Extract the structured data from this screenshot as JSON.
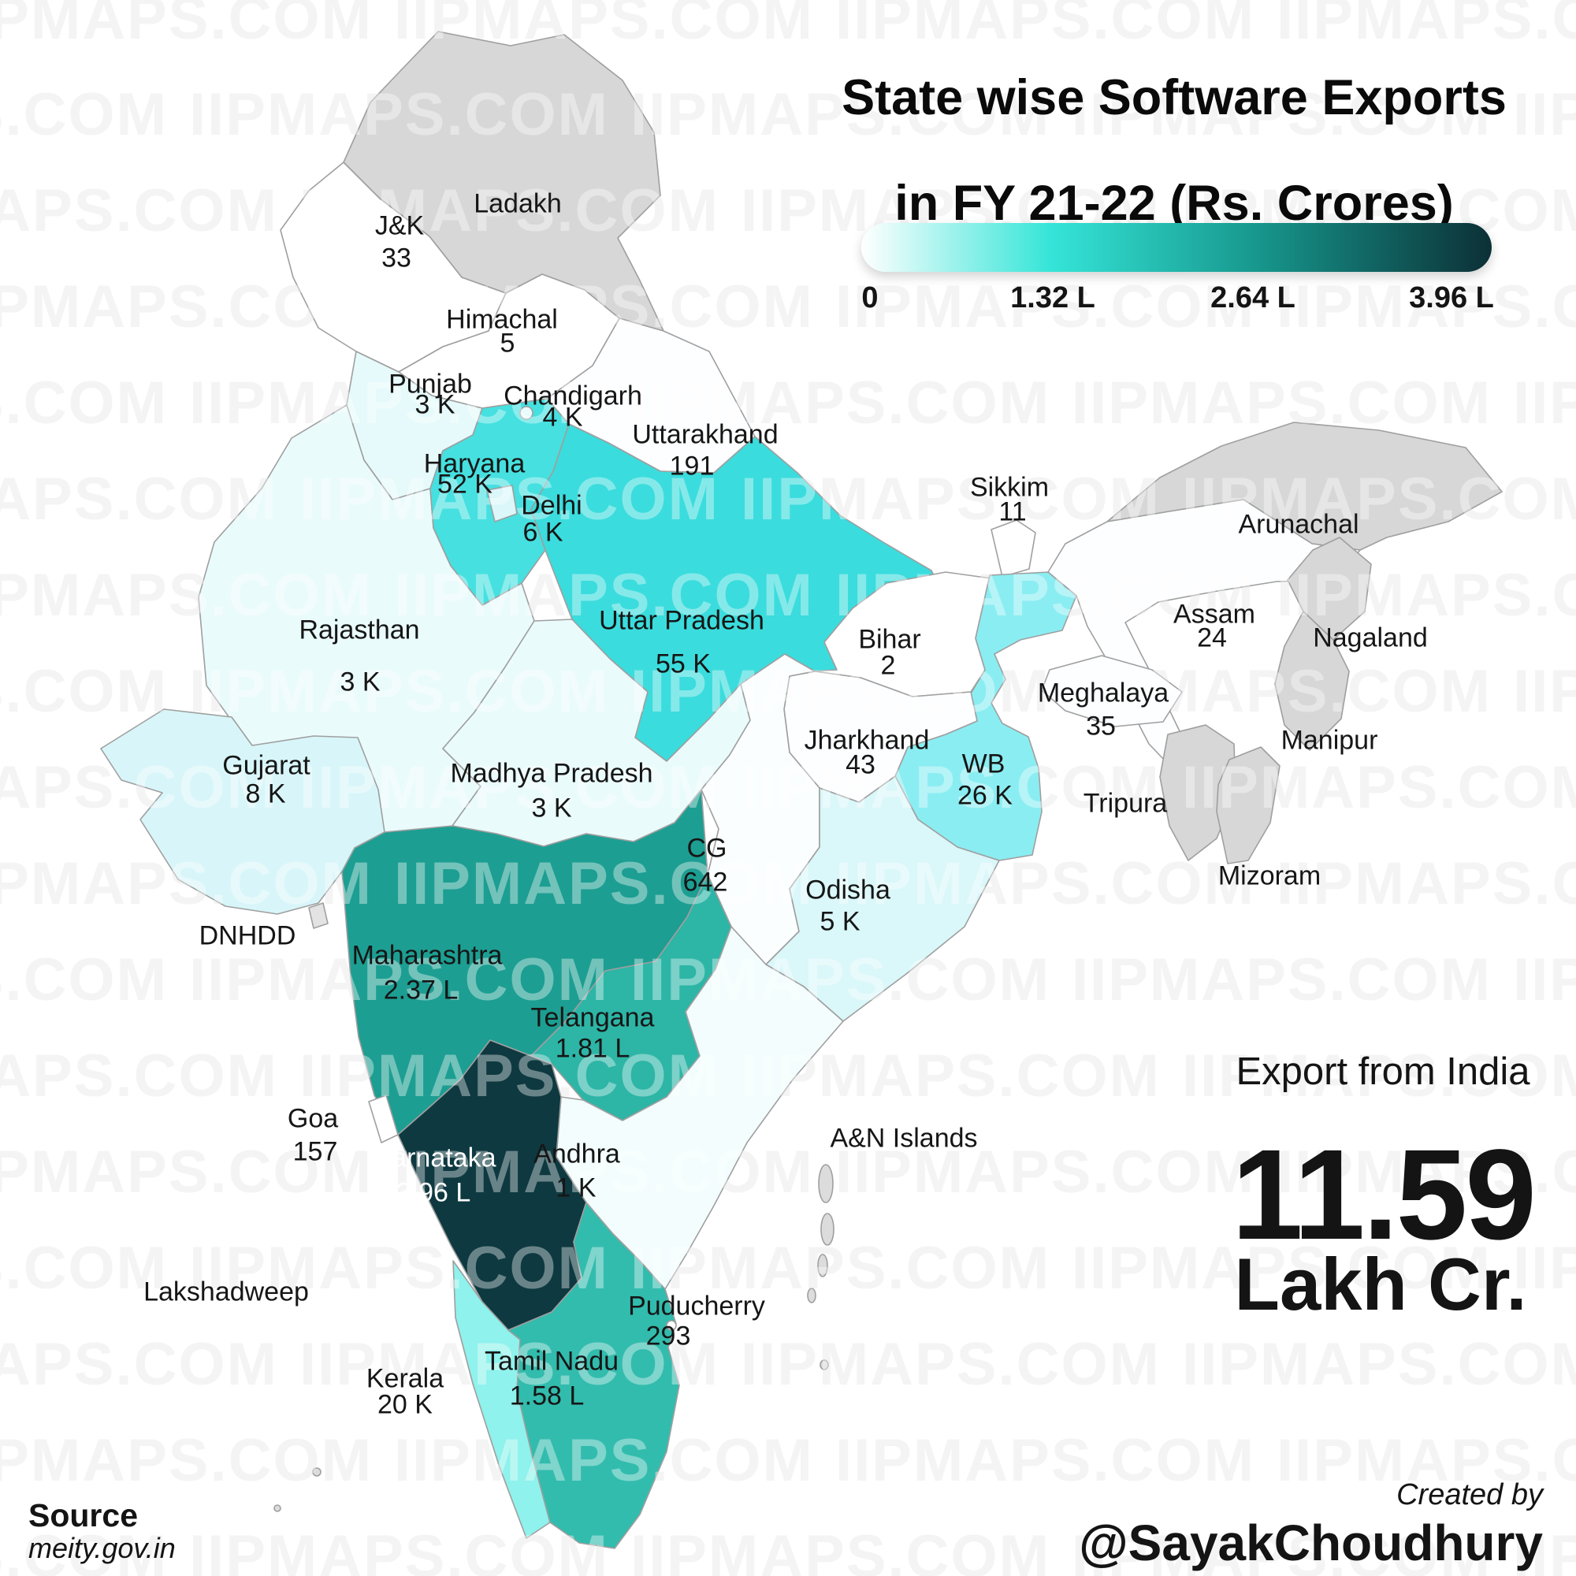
{
  "title": {
    "line1": "State wise Software Exports",
    "line2": "in FY 21-22 (Rs. Crores)"
  },
  "legend": {
    "ticks": [
      "0",
      "1.32 L",
      "2.64 L",
      "3.96 L"
    ],
    "gradient": [
      "#ffffff",
      "#35e5d8",
      "#16948a",
      "#0c3036"
    ]
  },
  "summary": {
    "heading": "Export from India",
    "value": "11.59",
    "unit": "Lakh Cr."
  },
  "source": {
    "label": "Source",
    "site": "meity.gov.in"
  },
  "credit": {
    "prefix": "Created by",
    "handle": "@SayakChoudhury"
  },
  "watermark": {
    "text": "IIPMAPS.COM"
  },
  "map": {
    "states": [
      {
        "key": "ladakh",
        "label": "Ladakh",
        "value": "",
        "fill": "#d7d7d7"
      },
      {
        "key": "jk",
        "label": "J&K",
        "value": "33",
        "fill": "#ffffff"
      },
      {
        "key": "himachal",
        "label": "Himachal",
        "value": "5",
        "fill": "#ffffff"
      },
      {
        "key": "punjab",
        "label": "Punjab",
        "value": "3 K",
        "fill": "#e6fafb"
      },
      {
        "key": "chandigarh",
        "label": "Chandigarh",
        "value": "4 K",
        "fill": "#e9fbfc"
      },
      {
        "key": "uttarakhand",
        "label": "Uttarakhand",
        "value": "191",
        "fill": "#fdfeff"
      },
      {
        "key": "haryana",
        "label": "Haryana",
        "value": "52 K",
        "fill": "#46e0e0"
      },
      {
        "key": "delhi",
        "label": "Delhi",
        "value": "6 K",
        "fill": "#dcf7fa"
      },
      {
        "key": "rajasthan",
        "label": "Rajasthan",
        "value": "3 K",
        "fill": "#eafbfc"
      },
      {
        "key": "up",
        "label": "Uttar Pradesh",
        "value": "55 K",
        "fill": "#3bdcdd"
      },
      {
        "key": "sikkim",
        "label": "Sikkim",
        "value": "11",
        "fill": "#ffffff"
      },
      {
        "key": "arunachal",
        "label": "Arunachal",
        "value": "",
        "fill": "#d7d7d7"
      },
      {
        "key": "bihar",
        "label": "Bihar",
        "value": "2",
        "fill": "#ffffff"
      },
      {
        "key": "assam",
        "label": "Assam",
        "value": "24",
        "fill": "#fdfeff"
      },
      {
        "key": "nagaland",
        "label": "Nagaland",
        "value": "",
        "fill": "#d7d7d7"
      },
      {
        "key": "meghalaya",
        "label": "Meghalaya",
        "value": "35",
        "fill": "#fcfeff"
      },
      {
        "key": "manipur",
        "label": "Manipur",
        "value": "",
        "fill": "#d7d7d7"
      },
      {
        "key": "jharkhand",
        "label": "Jharkhand",
        "value": "43",
        "fill": "#fdfeff"
      },
      {
        "key": "wb",
        "label": "WB",
        "value": "26 K",
        "fill": "#8aedf2"
      },
      {
        "key": "tripura",
        "label": "Tripura",
        "value": "",
        "fill": "#d7d7d7"
      },
      {
        "key": "mizoram",
        "label": "Mizoram",
        "value": "",
        "fill": "#d7d7d7"
      },
      {
        "key": "gujarat",
        "label": "Gujarat",
        "value": "8 K",
        "fill": "#d8f6f9"
      },
      {
        "key": "mp",
        "label": "Madhya Pradesh",
        "value": "3 K",
        "fill": "#eafbfc"
      },
      {
        "key": "cg",
        "label": "CG",
        "value": "642",
        "fill": "#fbfeff"
      },
      {
        "key": "odisha",
        "label": "Odisha",
        "value": "5 K",
        "fill": "#daf7f9"
      },
      {
        "key": "dnhdd",
        "label": "DNHDD",
        "value": "",
        "fill": "#e3e3e3"
      },
      {
        "key": "maharashtra",
        "label": "Maharashtra",
        "value": "2.37 L",
        "fill": "#1d9e92"
      },
      {
        "key": "telangana",
        "label": "Telangana",
        "value": "1.81 L",
        "fill": "#2db5a6"
      },
      {
        "key": "goa",
        "label": "Goa",
        "value": "157",
        "fill": "#ffffff"
      },
      {
        "key": "karnataka",
        "label": "Karnataka",
        "value": "3.96 L",
        "fill": "#0e3940"
      },
      {
        "key": "andhra",
        "label": "Andhra",
        "value": "1 K",
        "fill": "#f3fdfd"
      },
      {
        "key": "an",
        "label": "A&N Islands",
        "value": "",
        "fill": "#dcdcdc"
      },
      {
        "key": "lakshadweep",
        "label": "Lakshadweep",
        "value": "",
        "fill": "#dcdcdc"
      },
      {
        "key": "puducherry",
        "label": "Puducherry",
        "value": "293",
        "fill": "#ffffff"
      },
      {
        "key": "kerala",
        "label": "Kerala",
        "value": "20 K",
        "fill": "#8ff2ec"
      },
      {
        "key": "tn",
        "label": "Tamil Nadu",
        "value": "1.58 L",
        "fill": "#32bcad"
      }
    ]
  },
  "chart_data": {
    "type": "choropleth_map",
    "title": "State wise Software Exports in FY 21-22 (Rs. Crores)",
    "legend_range": [
      "0",
      "1.32 L",
      "2.64 L",
      "3.96 L"
    ],
    "total_label": "Export from India",
    "total_value": "11.59 Lakh Cr.",
    "regions": [
      {
        "name": "J&K",
        "value": "33"
      },
      {
        "name": "Himachal",
        "value": "5"
      },
      {
        "name": "Punjab",
        "value": "3 K"
      },
      {
        "name": "Chandigarh",
        "value": "4 K"
      },
      {
        "name": "Uttarakhand",
        "value": "191"
      },
      {
        "name": "Haryana",
        "value": "52 K"
      },
      {
        "name": "Delhi",
        "value": "6 K"
      },
      {
        "name": "Rajasthan",
        "value": "3 K"
      },
      {
        "name": "Uttar Pradesh",
        "value": "55 K"
      },
      {
        "name": "Sikkim",
        "value": "11"
      },
      {
        "name": "Bihar",
        "value": "2"
      },
      {
        "name": "Assam",
        "value": "24"
      },
      {
        "name": "Meghalaya",
        "value": "35"
      },
      {
        "name": "Jharkhand",
        "value": "43"
      },
      {
        "name": "WB",
        "value": "26 K"
      },
      {
        "name": "Gujarat",
        "value": "8 K"
      },
      {
        "name": "Madhya Pradesh",
        "value": "3 K"
      },
      {
        "name": "CG",
        "value": "642"
      },
      {
        "name": "Odisha",
        "value": "5 K"
      },
      {
        "name": "Maharashtra",
        "value": "2.37 L"
      },
      {
        "name": "Telangana",
        "value": "1.81 L"
      },
      {
        "name": "Goa",
        "value": "157"
      },
      {
        "name": "Karnataka",
        "value": "3.96 L"
      },
      {
        "name": "Andhra",
        "value": "1 K"
      },
      {
        "name": "Puducherry",
        "value": "293"
      },
      {
        "name": "Kerala",
        "value": "20 K"
      },
      {
        "name": "Tamil Nadu",
        "value": "1.58 L"
      }
    ]
  }
}
